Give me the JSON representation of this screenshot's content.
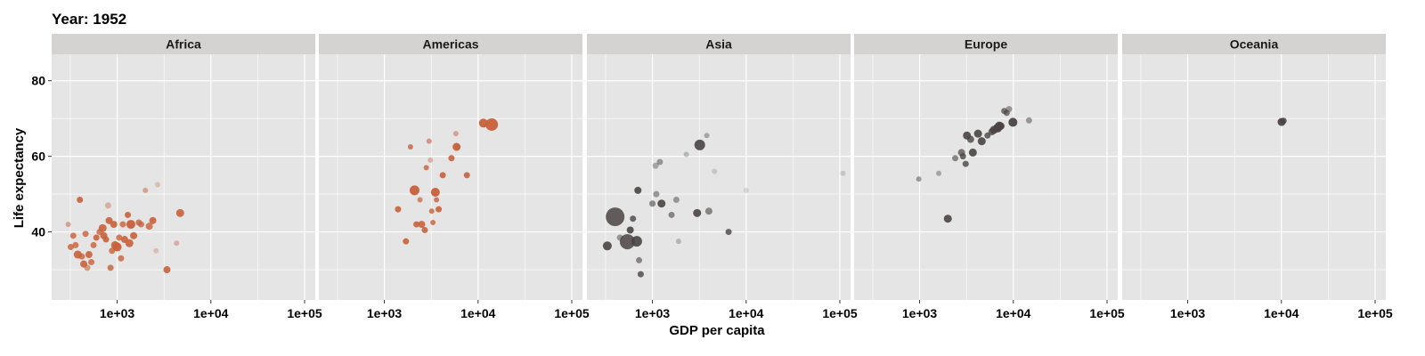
{
  "chart_data": {
    "type": "scatter",
    "title": "Year: 1952",
    "xlabel": "GDP per capita",
    "ylabel": "Life expectancy",
    "x_scale": "log10",
    "xlim": [
      200,
      130000
    ],
    "ylim": [
      22,
      87
    ],
    "x_ticks": [
      {
        "value": 1000,
        "label": "1e+03"
      },
      {
        "value": 10000,
        "label": "1e+04"
      },
      {
        "value": 100000,
        "label": "1e+05"
      }
    ],
    "y_ticks": [
      {
        "value": 40,
        "label": "40"
      },
      {
        "value": 60,
        "label": "60"
      },
      {
        "value": 80,
        "label": "80"
      }
    ],
    "grid": true,
    "legend": "none",
    "colors": {
      "panel_bg": "#e5e5e5",
      "strip_bg": "#d4d3d2",
      "grid": "#ffffff",
      "Africa": "#c8603a",
      "Americas": "#c8603a",
      "Asia": "#4a4343",
      "Europe": "#4a4343",
      "Oceania": "#4a4343"
    },
    "facets": [
      {
        "name": "Africa",
        "points": [
          {
            "x": 300,
            "y": 42,
            "r": 3,
            "o": 0.5
          },
          {
            "x": 320,
            "y": 36,
            "r": 3.5,
            "o": 0.8
          },
          {
            "x": 340,
            "y": 39,
            "r": 3.5,
            "o": 0.8
          },
          {
            "x": 360,
            "y": 36.5,
            "r": 3.5,
            "o": 0.8
          },
          {
            "x": 380,
            "y": 34,
            "r": 4.5,
            "o": 0.9
          },
          {
            "x": 400,
            "y": 48.5,
            "r": 3.5,
            "o": 0.9
          },
          {
            "x": 420,
            "y": 33.5,
            "r": 3.5,
            "o": 0.8
          },
          {
            "x": 440,
            "y": 31.5,
            "r": 4,
            "o": 0.9
          },
          {
            "x": 460,
            "y": 39.5,
            "r": 3.5,
            "o": 0.8
          },
          {
            "x": 480,
            "y": 30.5,
            "r": 3.5,
            "o": 0.6
          },
          {
            "x": 500,
            "y": 34,
            "r": 4,
            "o": 0.9
          },
          {
            "x": 530,
            "y": 32,
            "r": 3.5,
            "o": 0.8
          },
          {
            "x": 560,
            "y": 36.5,
            "r": 3.5,
            "o": 0.8
          },
          {
            "x": 600,
            "y": 38.5,
            "r": 3.5,
            "o": 0.9
          },
          {
            "x": 650,
            "y": 40,
            "r": 3.5,
            "o": 0.8
          },
          {
            "x": 700,
            "y": 41,
            "r": 4.5,
            "o": 0.9
          },
          {
            "x": 720,
            "y": 39,
            "r": 4,
            "o": 0.9
          },
          {
            "x": 760,
            "y": 38,
            "r": 3.5,
            "o": 0.9
          },
          {
            "x": 800,
            "y": 47,
            "r": 3.5,
            "o": 0.4
          },
          {
            "x": 820,
            "y": 43,
            "r": 4,
            "o": 0.9
          },
          {
            "x": 850,
            "y": 30.5,
            "r": 3.5,
            "o": 0.8
          },
          {
            "x": 880,
            "y": 35,
            "r": 3.5,
            "o": 0.8
          },
          {
            "x": 920,
            "y": 42,
            "r": 4,
            "o": 0.9
          },
          {
            "x": 950,
            "y": 36.5,
            "r": 4.5,
            "o": 0.9
          },
          {
            "x": 1000,
            "y": 36,
            "r": 5,
            "o": 0.95
          },
          {
            "x": 1050,
            "y": 38.5,
            "r": 3.5,
            "o": 0.8
          },
          {
            "x": 1100,
            "y": 33,
            "r": 3.5,
            "o": 0.8
          },
          {
            "x": 1150,
            "y": 42,
            "r": 3.5,
            "o": 0.8
          },
          {
            "x": 1200,
            "y": 38,
            "r": 4,
            "o": 0.9
          },
          {
            "x": 1300,
            "y": 44.5,
            "r": 3.5,
            "o": 0.9
          },
          {
            "x": 1350,
            "y": 37,
            "r": 4.5,
            "o": 0.9
          },
          {
            "x": 1400,
            "y": 42,
            "r": 5,
            "o": 0.95
          },
          {
            "x": 1500,
            "y": 39,
            "r": 4,
            "o": 0.9
          },
          {
            "x": 1700,
            "y": 42.5,
            "r": 3.5,
            "o": 0.8
          },
          {
            "x": 1800,
            "y": 42,
            "r": 3.5,
            "o": 0.8
          },
          {
            "x": 2000,
            "y": 51,
            "r": 3,
            "o": 0.5
          },
          {
            "x": 2200,
            "y": 41.5,
            "r": 4,
            "o": 0.8
          },
          {
            "x": 2400,
            "y": 43,
            "r": 4,
            "o": 0.9
          },
          {
            "x": 2700,
            "y": 52.5,
            "r": 3,
            "o": 0.3
          },
          {
            "x": 2600,
            "y": 35,
            "r": 3,
            "o": 0.3
          },
          {
            "x": 3400,
            "y": 30,
            "r": 4,
            "o": 0.9
          },
          {
            "x": 4300,
            "y": 37,
            "r": 3,
            "o": 0.4
          },
          {
            "x": 4700,
            "y": 45,
            "r": 4.5,
            "o": 0.9
          }
        ]
      },
      {
        "name": "Americas",
        "points": [
          {
            "x": 1400,
            "y": 46,
            "r": 3.5,
            "o": 0.9
          },
          {
            "x": 1700,
            "y": 37.5,
            "r": 3.5,
            "o": 0.9
          },
          {
            "x": 1900,
            "y": 62.5,
            "r": 3,
            "o": 0.8
          },
          {
            "x": 2100,
            "y": 51,
            "r": 5.5,
            "o": 0.95
          },
          {
            "x": 2200,
            "y": 42,
            "r": 3.5,
            "o": 0.9
          },
          {
            "x": 2400,
            "y": 48.5,
            "r": 3,
            "o": 0.7
          },
          {
            "x": 2500,
            "y": 42,
            "r": 4,
            "o": 0.9
          },
          {
            "x": 2700,
            "y": 40.5,
            "r": 3.5,
            "o": 0.9
          },
          {
            "x": 2800,
            "y": 57,
            "r": 3,
            "o": 0.8
          },
          {
            "x": 3000,
            "y": 64,
            "r": 3,
            "o": 0.6
          },
          {
            "x": 3100,
            "y": 59,
            "r": 3,
            "o": 0.4
          },
          {
            "x": 3200,
            "y": 45.5,
            "r": 3,
            "o": 0.8
          },
          {
            "x": 3300,
            "y": 42.5,
            "r": 3,
            "o": 0.8
          },
          {
            "x": 3500,
            "y": 50.5,
            "r": 5,
            "o": 0.95
          },
          {
            "x": 3600,
            "y": 48.5,
            "r": 3,
            "o": 0.8
          },
          {
            "x": 3800,
            "y": 46,
            "r": 3.5,
            "o": 0.9
          },
          {
            "x": 4200,
            "y": 55,
            "r": 3.5,
            "o": 0.9
          },
          {
            "x": 5200,
            "y": 59.5,
            "r": 3.5,
            "o": 0.9
          },
          {
            "x": 5800,
            "y": 66,
            "r": 3,
            "o": 0.5
          },
          {
            "x": 5900,
            "y": 62.5,
            "r": 4.5,
            "o": 0.95
          },
          {
            "x": 7600,
            "y": 55,
            "r": 3.5,
            "o": 0.9
          },
          {
            "x": 11400,
            "y": 68.8,
            "r": 5,
            "o": 0.95
          },
          {
            "x": 13990,
            "y": 68.4,
            "r": 7,
            "o": 0.95
          }
        ]
      },
      {
        "name": "Asia",
        "points": [
          {
            "x": 330,
            "y": 36.3,
            "r": 5,
            "o": 0.9
          },
          {
            "x": 400,
            "y": 44,
            "r": 10.5,
            "o": 0.85
          },
          {
            "x": 450,
            "y": 38.5,
            "r": 3.5,
            "o": 0.5
          },
          {
            "x": 540,
            "y": 37.4,
            "r": 8.5,
            "o": 0.85
          },
          {
            "x": 580,
            "y": 40.5,
            "r": 4,
            "o": 0.9
          },
          {
            "x": 620,
            "y": 43.5,
            "r": 3.5,
            "o": 0.8
          },
          {
            "x": 680,
            "y": 37.5,
            "r": 6,
            "o": 0.9
          },
          {
            "x": 700,
            "y": 51,
            "r": 4,
            "o": 0.9
          },
          {
            "x": 720,
            "y": 32.5,
            "r": 3.5,
            "o": 0.6
          },
          {
            "x": 750,
            "y": 28.8,
            "r": 3.5,
            "o": 0.8
          },
          {
            "x": 1000,
            "y": 47.5,
            "r": 3.5,
            "o": 0.6
          },
          {
            "x": 1080,
            "y": 57.5,
            "r": 3.5,
            "o": 0.4
          },
          {
            "x": 1100,
            "y": 50,
            "r": 3.5,
            "o": 0.5
          },
          {
            "x": 1200,
            "y": 58.5,
            "r": 3.5,
            "o": 0.5
          },
          {
            "x": 1250,
            "y": 47.5,
            "r": 4.5,
            "o": 0.9
          },
          {
            "x": 1600,
            "y": 44.5,
            "r": 3.5,
            "o": 0.6
          },
          {
            "x": 1800,
            "y": 48.5,
            "r": 3.5,
            "o": 0.5
          },
          {
            "x": 1900,
            "y": 37.5,
            "r": 3,
            "o": 0.3
          },
          {
            "x": 2300,
            "y": 60.5,
            "r": 3,
            "o": 0.3
          },
          {
            "x": 3000,
            "y": 45,
            "r": 4.5,
            "o": 0.9
          },
          {
            "x": 3200,
            "y": 63,
            "r": 6,
            "o": 0.9
          },
          {
            "x": 3800,
            "y": 65.5,
            "r": 3,
            "o": 0.4
          },
          {
            "x": 4000,
            "y": 45.5,
            "r": 4,
            "o": 0.6
          },
          {
            "x": 4600,
            "y": 56,
            "r": 3,
            "o": 0.2
          },
          {
            "x": 6500,
            "y": 40,
            "r": 3.5,
            "o": 0.8
          },
          {
            "x": 10000,
            "y": 51,
            "r": 3,
            "o": 0.15
          },
          {
            "x": 108000,
            "y": 55.5,
            "r": 3,
            "o": 0.2
          }
        ]
      },
      {
        "name": "Europe",
        "points": [
          {
            "x": 980,
            "y": 54,
            "r": 3,
            "o": 0.5
          },
          {
            "x": 1600,
            "y": 55.5,
            "r": 3,
            "o": 0.4
          },
          {
            "x": 2000,
            "y": 43.5,
            "r": 4.5,
            "o": 0.9
          },
          {
            "x": 2400,
            "y": 59.5,
            "r": 3.5,
            "o": 0.6
          },
          {
            "x": 2800,
            "y": 61,
            "r": 4,
            "o": 0.7
          },
          {
            "x": 2900,
            "y": 60,
            "r": 3.5,
            "o": 0.8
          },
          {
            "x": 3100,
            "y": 58,
            "r": 3.5,
            "o": 0.8
          },
          {
            "x": 3200,
            "y": 65.5,
            "r": 4.5,
            "o": 0.9
          },
          {
            "x": 3500,
            "y": 64.5,
            "r": 4,
            "o": 0.8
          },
          {
            "x": 3700,
            "y": 61,
            "r": 4.5,
            "o": 0.9
          },
          {
            "x": 4200,
            "y": 66,
            "r": 4.5,
            "o": 0.9
          },
          {
            "x": 4600,
            "y": 64,
            "r": 4.5,
            "o": 0.9
          },
          {
            "x": 5300,
            "y": 65.5,
            "r": 3.5,
            "o": 0.8
          },
          {
            "x": 5900,
            "y": 66.5,
            "r": 4,
            "o": 0.8
          },
          {
            "x": 6200,
            "y": 67,
            "r": 4.5,
            "o": 0.9
          },
          {
            "x": 6800,
            "y": 67.5,
            "r": 5,
            "o": 0.95
          },
          {
            "x": 7100,
            "y": 68,
            "r": 5,
            "o": 0.95
          },
          {
            "x": 7400,
            "y": 68,
            "r": 4,
            "o": 0.8
          },
          {
            "x": 8000,
            "y": 72,
            "r": 3.5,
            "o": 0.7
          },
          {
            "x": 8500,
            "y": 71.5,
            "r": 3.5,
            "o": 0.7
          },
          {
            "x": 9000,
            "y": 72.5,
            "r": 3.5,
            "o": 0.5
          },
          {
            "x": 9900,
            "y": 69,
            "r": 5,
            "o": 0.95
          },
          {
            "x": 14700,
            "y": 69.5,
            "r": 3.5,
            "o": 0.5
          }
        ]
      },
      {
        "name": "Oceania",
        "points": [
          {
            "x": 10040,
            "y": 69.1,
            "r": 4.5,
            "o": 0.95
          },
          {
            "x": 10560,
            "y": 69.4,
            "r": 3.5,
            "o": 0.8
          }
        ]
      }
    ]
  }
}
